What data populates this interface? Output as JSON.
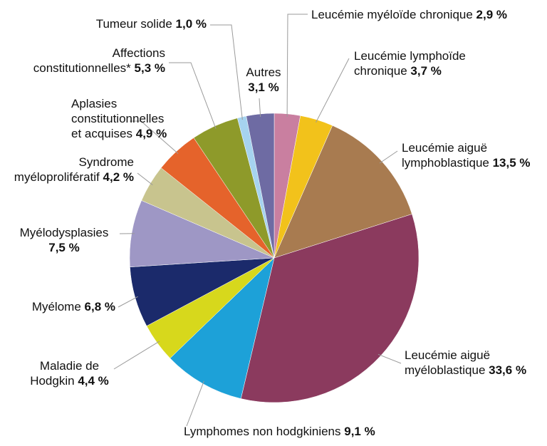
{
  "chart_data": {
    "type": "pie",
    "categories": [
      "Leucémie myéloïde chronique",
      "Leucémie lymphoïde chronique",
      "Leucémie aiguë lymphoblastique",
      "Leucémie aiguë myéloblastique",
      "Lymphomes non hodgkiniens",
      "Maladie de Hodgkin",
      "Myélome",
      "Myélodysplasies",
      "Syndrome myéloprolifératif",
      "Aplasies constitutionnelles et acquises",
      "Affections constitutionnelles*",
      "Tumeur solide",
      "Autres"
    ],
    "values": [
      2.9,
      3.7,
      13.5,
      33.6,
      9.1,
      4.4,
      6.8,
      7.5,
      4.2,
      4.9,
      5.3,
      1.0,
      3.1
    ],
    "value_labels": [
      "2,9 %",
      "3,7 %",
      "13,5 %",
      "33,6 %",
      "9,1 %",
      "4,4 %",
      "6,8 %",
      "7,5 %",
      "4,2 %",
      "4,9 %",
      "5,3 %",
      "1,0 %",
      "3,1 %"
    ],
    "colors": [
      "#c97fa0",
      "#f2c21b",
      "#a87b50",
      "#8b3a5e",
      "#1da1d8",
      "#d7d81c",
      "#1b2a6b",
      "#9e97c5",
      "#c8c48e",
      "#e5632b",
      "#8e9a2a",
      "#a6d3ef",
      "#6e6ba3"
    ]
  }
}
